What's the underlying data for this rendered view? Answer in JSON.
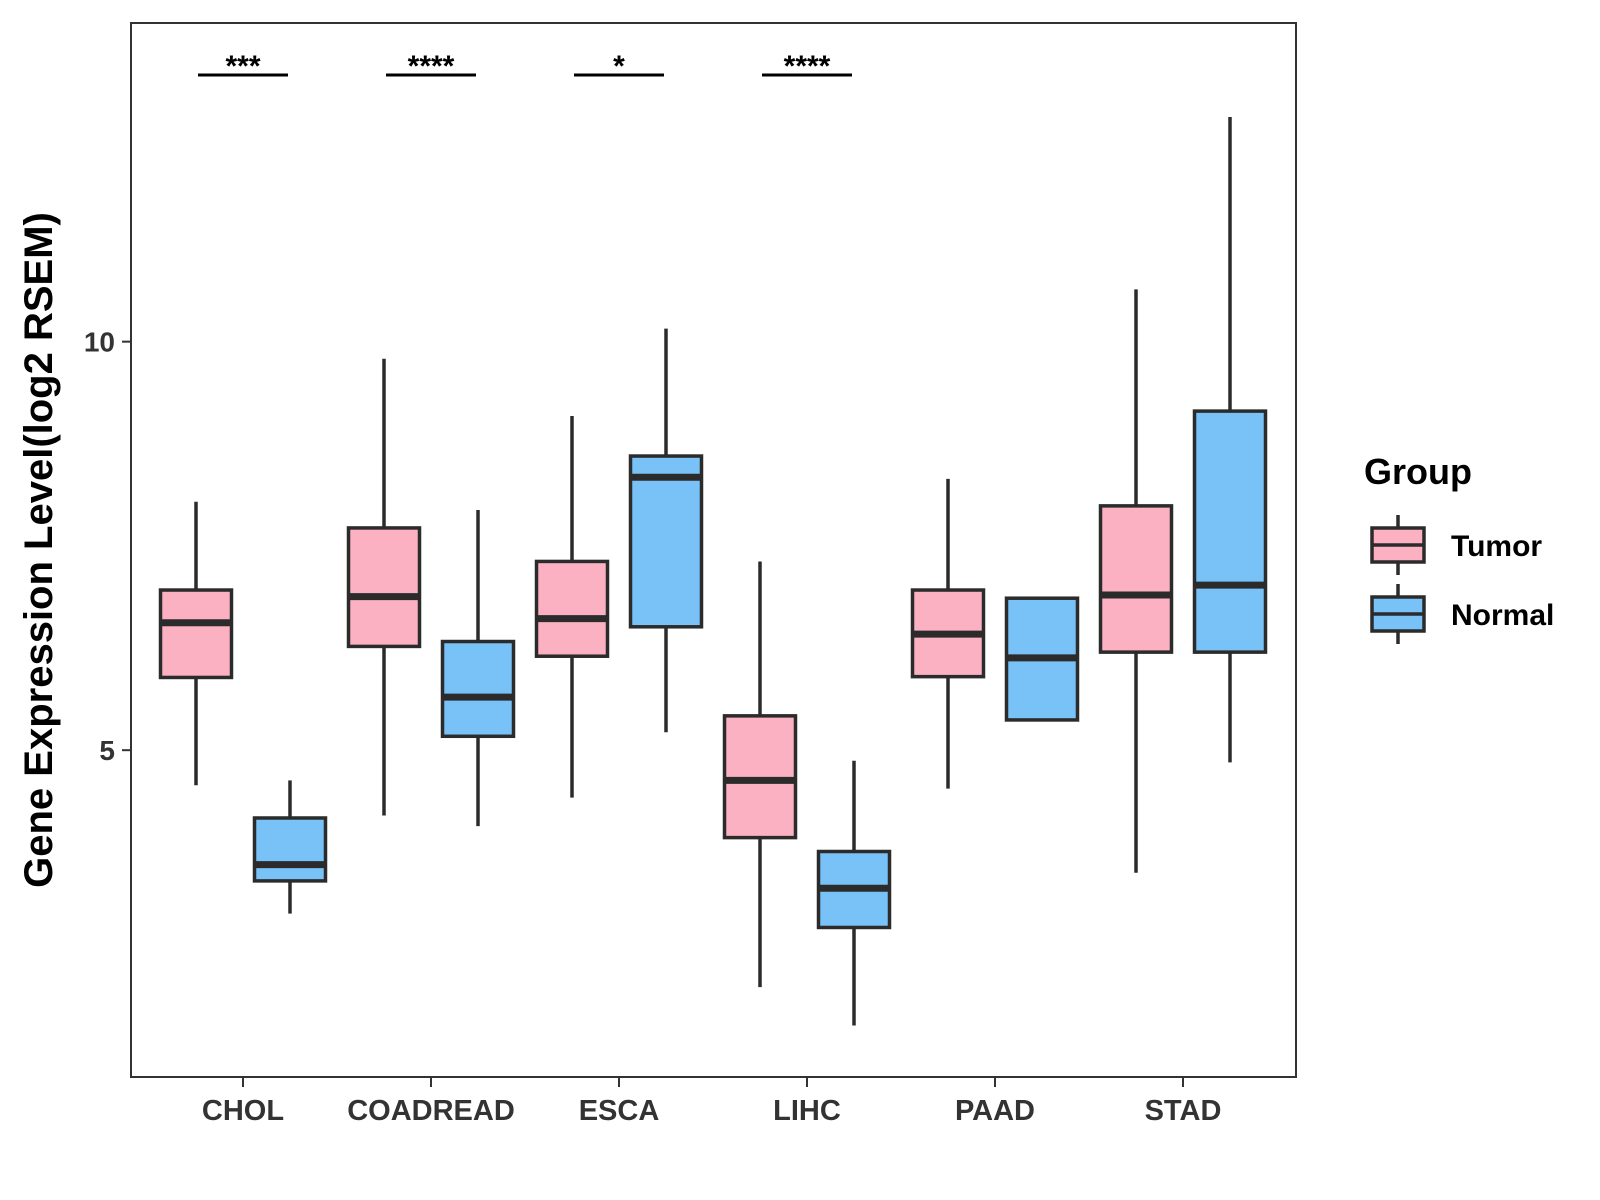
{
  "chart_data": {
    "type": "boxplot",
    "title": "",
    "xlabel": "",
    "ylabel": "Gene Expression Level(log2 RSEM)",
    "ylim": [
      1.0,
      13.9
    ],
    "yticks": [
      5,
      10
    ],
    "ytick_labels": [
      "5",
      "10"
    ],
    "categories": [
      "CHOL",
      "COADREAD",
      "ESCA",
      "LIHC",
      "PAAD",
      "STAD"
    ],
    "legend": {
      "title": "Group",
      "position": "right",
      "entries": [
        {
          "name": "Tumor",
          "color": "#fbb1c2"
        },
        {
          "name": "Normal",
          "color": "#79c2f8"
        }
      ]
    },
    "series": [
      {
        "name": "Tumor",
        "color": "#fbb1c2",
        "boxes": [
          {
            "category": "CHOL",
            "min": 4.57,
            "q1": 5.89,
            "median": 6.56,
            "q3": 6.96,
            "max": 8.04
          },
          {
            "category": "COADREAD",
            "min": 4.2,
            "q1": 6.27,
            "median": 6.88,
            "q3": 7.72,
            "max": 9.79
          },
          {
            "category": "ESCA",
            "min": 4.42,
            "q1": 6.15,
            "median": 6.61,
            "q3": 7.31,
            "max": 9.09
          },
          {
            "category": "LIHC",
            "min": 2.1,
            "q1": 3.93,
            "median": 4.63,
            "q3": 5.42,
            "max": 7.31
          },
          {
            "category": "PAAD",
            "min": 4.53,
            "q1": 5.9,
            "median": 6.42,
            "q3": 6.96,
            "max": 8.32
          },
          {
            "category": "STAD",
            "min": 3.5,
            "q1": 6.2,
            "median": 6.9,
            "q3": 7.99,
            "max": 10.64
          }
        ]
      },
      {
        "name": "Normal",
        "color": "#79c2f8",
        "boxes": [
          {
            "category": "CHOL",
            "min": 3.0,
            "q1": 3.4,
            "median": 3.6,
            "q3": 4.17,
            "max": 4.63
          },
          {
            "category": "COADREAD",
            "min": 4.07,
            "q1": 5.17,
            "median": 5.65,
            "q3": 6.33,
            "max": 7.94
          },
          {
            "category": "ESCA",
            "min": 5.22,
            "q1": 6.51,
            "median": 8.34,
            "q3": 8.6,
            "max": 10.16
          },
          {
            "category": "LIHC",
            "min": 1.63,
            "q1": 2.83,
            "median": 3.31,
            "q3": 3.76,
            "max": 4.87
          },
          {
            "category": "PAAD",
            "min": 5.37,
            "q1": 5.37,
            "median": 6.13,
            "q3": 6.86,
            "max": 6.86
          },
          {
            "category": "STAD",
            "min": 4.85,
            "q1": 6.2,
            "median": 7.02,
            "q3": 9.15,
            "max": 12.75
          }
        ]
      }
    ],
    "significance": [
      {
        "category": "CHOL",
        "label": "***"
      },
      {
        "category": "COADREAD",
        "label": "****"
      },
      {
        "category": "ESCA",
        "label": "*"
      },
      {
        "category": "LIHC",
        "label": "****"
      }
    ]
  }
}
